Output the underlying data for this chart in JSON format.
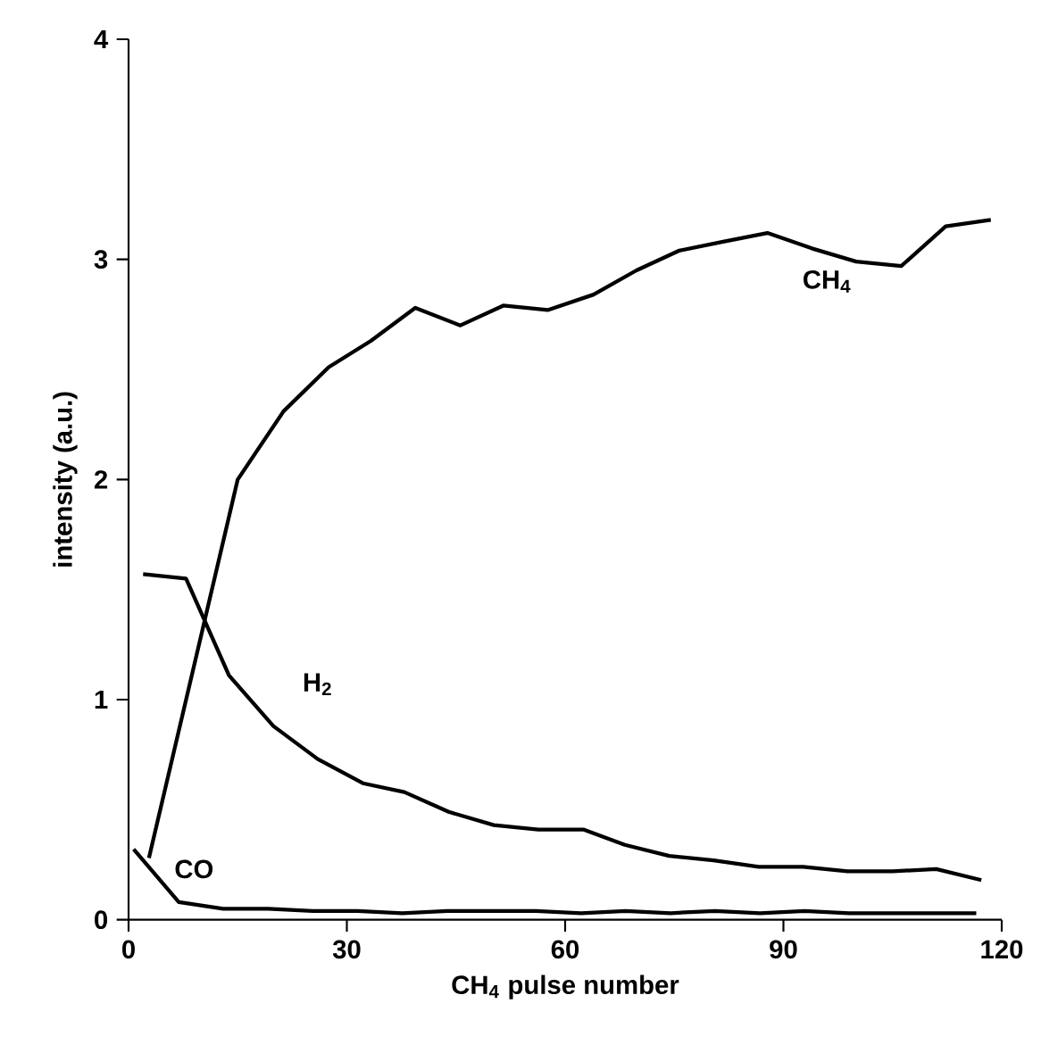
{
  "chart_data": {
    "type": "line",
    "xlabel": "CH$_{4}$ pulse number",
    "ylabel": "intensity (a.u.)",
    "xlim": [
      0,
      120
    ],
    "xticks": [
      0,
      30,
      60,
      90,
      120
    ],
    "ylim": [
      0,
      4
    ],
    "yticks": [
      0,
      1,
      2,
      3,
      4
    ],
    "grid": false,
    "legend": false,
    "marker": "none",
    "line_style": "solid",
    "series": [
      {
        "name": "CH$_{4}$",
        "color": "#000000",
        "x": [
          2.8,
          15,
          21.3,
          27.5,
          33.3,
          39.4,
          45.6,
          51.5,
          57.6,
          63.9,
          69.8,
          75.7,
          81.7,
          87.8,
          93.9,
          100,
          106.2,
          112.3,
          118.5
        ],
        "values": [
          0.28,
          2.0,
          2.31,
          2.51,
          2.63,
          2.78,
          2.7,
          2.79,
          2.77,
          2.84,
          2.95,
          3.04,
          3.08,
          3.12,
          3.05,
          2.99,
          2.97,
          3.15,
          3.18
        ]
      },
      {
        "name": "H$_{2}$",
        "color": "#000000",
        "x": [
          2,
          7.9,
          13.8,
          19.9,
          26,
          32.2,
          37.9,
          44,
          50.2,
          56.3,
          62.5,
          68.2,
          74.3,
          80.4,
          86.6,
          92.7,
          98.8,
          105,
          111,
          117.2
        ],
        "values": [
          1.57,
          1.55,
          1.11,
          0.88,
          0.73,
          0.62,
          0.58,
          0.49,
          0.43,
          0.41,
          0.41,
          0.34,
          0.29,
          0.27,
          0.24,
          0.24,
          0.22,
          0.22,
          0.23,
          0.18
        ]
      },
      {
        "name": "CO",
        "color": "#000000",
        "x": [
          0.7,
          6.9,
          13,
          19.2,
          25.3,
          31.5,
          37.6,
          43.8,
          49.9,
          56,
          62.2,
          68.3,
          74.5,
          80.6,
          86.8,
          92.9,
          99,
          105.2,
          111.3,
          116.5
        ],
        "values": [
          0.32,
          0.08,
          0.05,
          0.05,
          0.04,
          0.04,
          0.03,
          0.04,
          0.04,
          0.04,
          0.03,
          0.04,
          0.03,
          0.04,
          0.03,
          0.04,
          0.03,
          0.03,
          0.03,
          0.03
        ]
      }
    ]
  }
}
